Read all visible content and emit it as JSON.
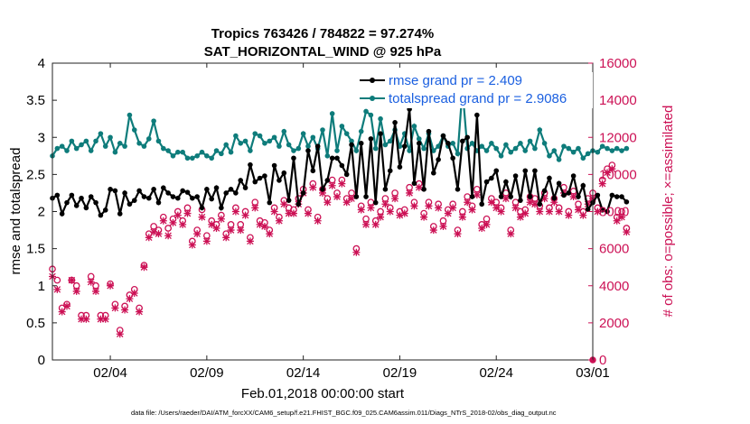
{
  "chart_data": {
    "type": "line",
    "title": "Tropics 763426 / 784822 = 97.274%",
    "subtitle": "SAT_HORIZONTAL_WIND @ 925 hPa",
    "xlabel": "Feb.01,2018 00:00:00 start",
    "ylabel": "rmse and totalspread",
    "y2label": "# of obs: o=possible; ×=assimilated",
    "footer": "data file: /Users/raeder/DAI/ATM_forcXX/CAM6_setup/f.e21.FHIST_BGC.f09_025.CAM6assim.011/Diags_NTrS_2018-02/obs_diag_output.nc",
    "xlim": [
      1.0,
      29.0
    ],
    "ylim": [
      0,
      4
    ],
    "y2lim": [
      0,
      16000
    ],
    "x_tick_values": [
      4,
      9,
      14,
      19,
      24,
      29
    ],
    "x_tick_labels": [
      "02/04",
      "02/09",
      "02/14",
      "02/19",
      "02/24",
      "03/01"
    ],
    "y_ticks": [
      "0",
      "0.5",
      "1",
      "1.5",
      "2",
      "2.5",
      "3",
      "3.5",
      "4"
    ],
    "y2_ticks": [
      "0",
      "2000",
      "4000",
      "6000",
      "8000",
      "10000",
      "12000",
      "14000",
      "16000"
    ],
    "legend_position": "top-right",
    "series": [
      {
        "name": "rmse grand pr = 2.409",
        "color": "#000000",
        "x_start": 1.0,
        "x_step": 0.25,
        "values": [
          2.18,
          2.22,
          1.97,
          2.12,
          2.22,
          2.08,
          2.18,
          2.05,
          2.2,
          2.12,
          1.95,
          2.02,
          2.3,
          2.28,
          1.97,
          2.25,
          2.1,
          2.15,
          2.28,
          2.2,
          2.18,
          2.3,
          2.12,
          2.32,
          2.25,
          2.2,
          2.18,
          2.28,
          2.26,
          2.18,
          2.2,
          2.05,
          2.3,
          2.17,
          2.32,
          2.05,
          2.25,
          2.3,
          2.25,
          2.42,
          2.32,
          2.63,
          2.4,
          2.45,
          2.48,
          2.12,
          2.62,
          2.42,
          2.52,
          2.15,
          2.72,
          2.1,
          2.25,
          2.82,
          2.55,
          2.88,
          2.3,
          2.42,
          2.72,
          2.72,
          2.62,
          2.5,
          2.9,
          2.2,
          2.92,
          2.2,
          2.98,
          2.12,
          3.05,
          2.3,
          2.55,
          3.2,
          2.6,
          2.88,
          3.38,
          2.38,
          2.92,
          2.3,
          3.08,
          2.52,
          2.7,
          3.02,
          2.92,
          2.72,
          2.3,
          2.95,
          3.0,
          2.2,
          3.3,
          2.1,
          2.4,
          2.45,
          2.55,
          2.2,
          2.4,
          2.2,
          2.48,
          2.15,
          2.55,
          2.2,
          2.55,
          2.1,
          2.28,
          2.45,
          2.18,
          2.38,
          2.22,
          2.25,
          2.48,
          2.2,
          2.35,
          2.03,
          2.12,
          2.22,
          2.02,
          2.0,
          2.22,
          2.2,
          2.2,
          2.13
        ]
      },
      {
        "name": "totalspread grand pr = 2.9086",
        "color": "#0e7c7b",
        "x_start": 1.0,
        "x_step": 0.25,
        "values": [
          2.75,
          2.85,
          2.88,
          2.82,
          2.95,
          2.85,
          2.9,
          2.95,
          2.82,
          2.95,
          3.05,
          2.88,
          3.0,
          2.8,
          2.92,
          2.88,
          3.3,
          3.1,
          2.92,
          2.88,
          2.98,
          3.22,
          2.95,
          2.85,
          2.82,
          2.75,
          2.8,
          2.8,
          2.72,
          2.72,
          2.75,
          2.8,
          2.75,
          2.72,
          2.82,
          2.78,
          2.9,
          2.8,
          3.02,
          2.92,
          2.95,
          2.82,
          3.05,
          3.02,
          2.92,
          2.95,
          3.0,
          2.88,
          3.08,
          2.9,
          2.82,
          2.85,
          3.05,
          2.88,
          3.0,
          2.85,
          3.1,
          2.75,
          3.32,
          2.82,
          3.15,
          3.05,
          2.95,
          2.82,
          3.08,
          3.35,
          3.3,
          2.85,
          3.25,
          2.9,
          2.95,
          3.1,
          2.88,
          3.05,
          2.82,
          3.15,
          2.98,
          2.85,
          3.05,
          2.82,
          2.88,
          3.02,
          2.88,
          2.92,
          2.78,
          3.65,
          2.85,
          2.92,
          2.82,
          2.88,
          2.82,
          2.92,
          2.85,
          2.75,
          2.9,
          2.8,
          2.85,
          2.92,
          2.82,
          2.95,
          2.85,
          3.1,
          2.92,
          2.75,
          2.82,
          2.7,
          2.88,
          2.85,
          2.8,
          2.85,
          2.72,
          2.78,
          2.82,
          2.8,
          2.88,
          2.85,
          2.82,
          2.85,
          2.82,
          2.85
        ]
      },
      {
        "name": "# of obs possible",
        "color": "#cc1155",
        "marker": "o",
        "axis": "right",
        "x_start": 1.0,
        "x_step": 0.25,
        "values": [
          4900,
          4300,
          2800,
          3000,
          4300,
          4000,
          2400,
          2400,
          4500,
          4000,
          2400,
          2400,
          4100,
          3000,
          1600,
          2900,
          3500,
          3800,
          2800,
          5100,
          6800,
          7200,
          7000,
          7700,
          7100,
          7600,
          8000,
          7500,
          8200,
          6400,
          7000,
          8100,
          6700,
          7500,
          7300,
          7800,
          6800,
          7300,
          8200,
          7300,
          8000,
          6600,
          8500,
          7500,
          7400,
          7000,
          8200,
          7700,
          8600,
          8200,
          8100,
          8700,
          9200,
          8100,
          9500,
          7700,
          9200,
          8700,
          9700,
          9000,
          9700,
          8700,
          9000,
          6000,
          8300,
          7600,
          8500,
          7500,
          8000,
          8700,
          8200,
          9000,
          8000,
          8100,
          9300,
          8500,
          9500,
          7900,
          8500,
          7200,
          8400,
          7500,
          8100,
          8400,
          7000,
          8000,
          8800,
          8300,
          9200,
          7300,
          7600,
          8700,
          8500,
          8200,
          9000,
          7000,
          8500,
          8000,
          8100,
          8800,
          8700,
          8300,
          9000,
          8200,
          8700,
          8200,
          9300,
          8000,
          9100,
          8400,
          8000,
          8700,
          9000,
          8200,
          9700,
          10300,
          10500,
          7700,
          8000,
          7100
        ]
      },
      {
        "name": "# of obs assimilated",
        "color": "#cc1155",
        "marker": "x",
        "axis": "right",
        "x_start": 1.0,
        "x_step": 0.25,
        "values": [
          4500,
          3800,
          2600,
          2900,
          4300,
          3700,
          2200,
          2200,
          4200,
          3700,
          2200,
          2200,
          4000,
          2800,
          1400,
          2700,
          3300,
          3600,
          2600,
          5000,
          6600,
          6900,
          6800,
          7500,
          6700,
          7400,
          7800,
          7300,
          7900,
          6200,
          6800,
          7700,
          6400,
          7300,
          7100,
          7600,
          6600,
          7000,
          8000,
          7000,
          7800,
          6400,
          8200,
          7300,
          7200,
          6800,
          8000,
          7500,
          8400,
          7900,
          7900,
          8400,
          9000,
          7900,
          9300,
          7500,
          9000,
          8500,
          9400,
          8800,
          9500,
          8500,
          8700,
          5800,
          8100,
          7300,
          8200,
          7300,
          7700,
          8400,
          8000,
          8700,
          7800,
          7900,
          9000,
          8300,
          9300,
          7700,
          8300,
          7000,
          8200,
          7200,
          7900,
          8200,
          6800,
          7700,
          8500,
          8100,
          8900,
          7100,
          7300,
          8500,
          8200,
          8000,
          8700,
          6800,
          8200,
          7700,
          7900,
          8500,
          8400,
          8000,
          8700,
          8000,
          8500,
          8000,
          9000,
          7800,
          8800,
          8100,
          7800,
          8400,
          8700,
          8000,
          9500,
          10100,
          10300,
          7500,
          7700,
          6900
        ]
      }
    ]
  }
}
